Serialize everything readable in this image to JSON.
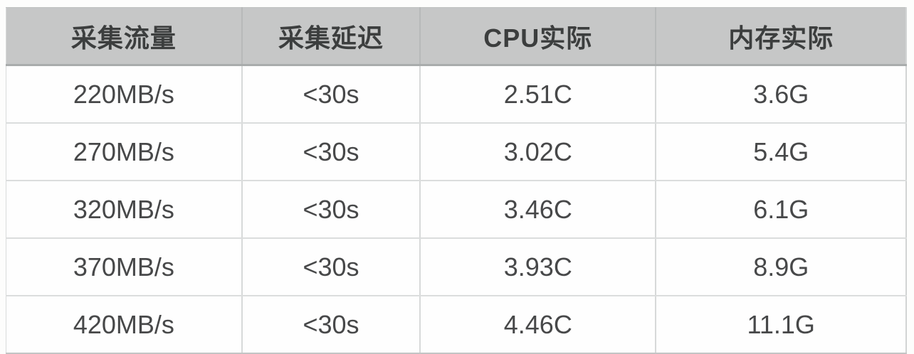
{
  "table": {
    "columns": [
      {
        "key": "traffic",
        "label": "采集流量"
      },
      {
        "key": "latency",
        "label": "采集延迟"
      },
      {
        "key": "cpu",
        "label": "CPU实际"
      },
      {
        "key": "memory",
        "label": "内存实际"
      }
    ],
    "rows": [
      {
        "traffic": "220MB/s",
        "latency": "<30s",
        "cpu": "2.51C",
        "memory": "3.6G"
      },
      {
        "traffic": "270MB/s",
        "latency": "<30s",
        "cpu": "3.02C",
        "memory": "5.4G"
      },
      {
        "traffic": "320MB/s",
        "latency": "<30s",
        "cpu": "3.46C",
        "memory": "6.1G"
      },
      {
        "traffic": "370MB/s",
        "latency": "<30s",
        "cpu": "3.93C",
        "memory": "8.9G"
      },
      {
        "traffic": "420MB/s",
        "latency": "<30s",
        "cpu": "4.46C",
        "memory": "11.1G"
      }
    ]
  },
  "chart_data": {
    "type": "table",
    "title": "",
    "columns": [
      "采集流量",
      "采集延迟",
      "CPU实际",
      "内存实际"
    ],
    "rows": [
      [
        "220MB/s",
        "<30s",
        "2.51C",
        "3.6G"
      ],
      [
        "270MB/s",
        "<30s",
        "3.02C",
        "5.4G"
      ],
      [
        "320MB/s",
        "<30s",
        "3.46C",
        "6.1G"
      ],
      [
        "370MB/s",
        "<30s",
        "3.93C",
        "8.9G"
      ],
      [
        "420MB/s",
        "<30s",
        "4.46C",
        "11.1G"
      ]
    ]
  },
  "colors": {
    "header_bg": "#c6c7c7",
    "header_text": "#3c3e3e",
    "body_text": "#474849",
    "grid_line": "#d9dbdb",
    "canvas_bg": "#fdfdfc"
  }
}
